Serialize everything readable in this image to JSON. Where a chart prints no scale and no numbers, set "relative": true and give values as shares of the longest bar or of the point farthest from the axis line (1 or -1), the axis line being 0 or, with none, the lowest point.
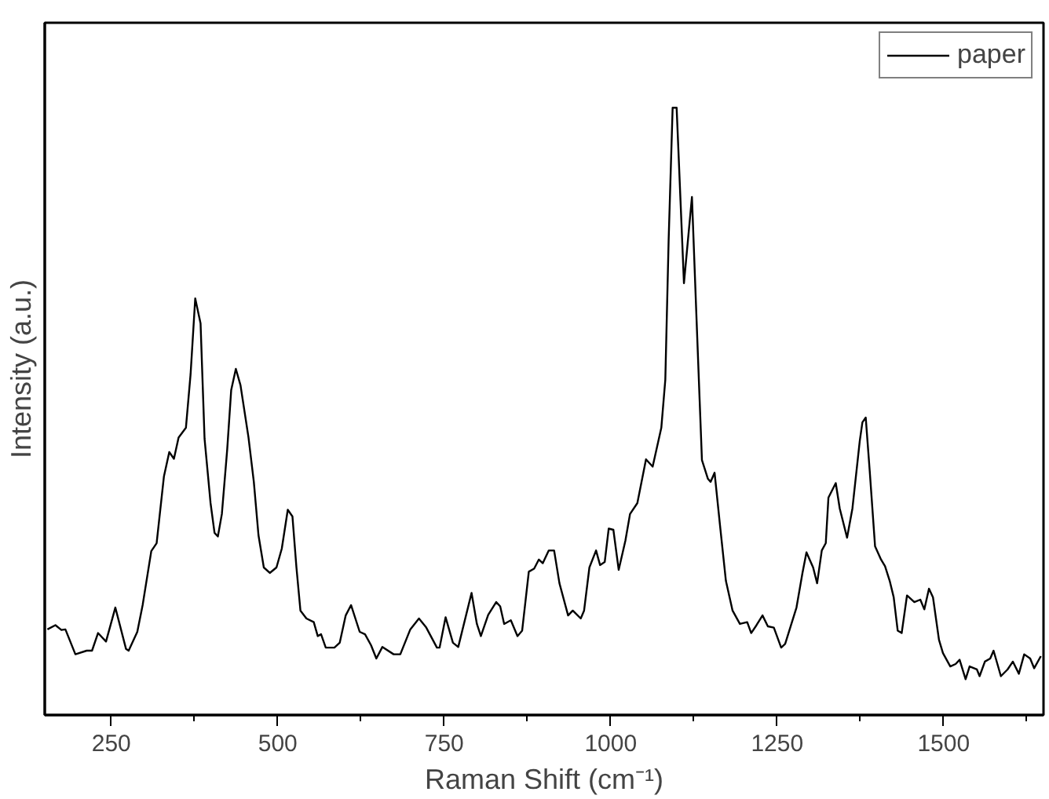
{
  "chart_data": {
    "type": "line",
    "xlabel": "Raman Shift (cm⁻¹)",
    "ylabel": "Intensity (a.u.)",
    "relative": true,
    "xlim": [
      150,
      1650
    ],
    "xticks": [
      250,
      {
        "value": 375,
        "label": null
      },
      500,
      {
        "value": 625,
        "label": null
      },
      750,
      {
        "value": 875,
        "label": null
      },
      1000,
      {
        "value": 1125,
        "label": null
      },
      1250,
      {
        "value": 1375,
        "label": null
      },
      1500,
      {
        "value": 1625,
        "label": null
      }
    ],
    "legend": "top right",
    "grid": false,
    "marker": "none",
    "line_style": "solid",
    "series": [
      {
        "name": "paper",
        "color": "#000000",
        "x": [
          154,
          166,
          175,
          181,
          196,
          213,
          221,
          230,
          242,
          256,
          272,
          276,
          289,
          297,
          310,
          318,
          329,
          337,
          344,
          351,
          362,
          369,
          376,
          384,
          390,
          399,
          405,
          410,
          416,
          424,
          430,
          437,
          444,
          456,
          464,
          471,
          479,
          488,
          498,
          506,
          515,
          522,
          528,
          534,
          543,
          554,
          560,
          565,
          572,
          585,
          593,
          602,
          610,
          623,
          631,
          640,
          648,
          657,
          674,
          684,
          699,
          712,
          723,
          739,
          743,
          752,
          763,
          771,
          791,
          799,
          805,
          816,
          828,
          834,
          840,
          850,
          860,
          867,
          877,
          885,
          892,
          898,
          907,
          915,
          923,
          936,
          943,
          955,
          960,
          968,
          978,
          984,
          991,
          997,
          1004,
          1012,
          1022,
          1029,
          1040,
          1053,
          1063,
          1076,
          1082,
          1087,
          1093,
          1099,
          1110,
          1122,
          1129,
          1137,
          1146,
          1150,
          1156,
          1164,
          1173,
          1183,
          1194,
          1205,
          1211,
          1219,
          1228,
          1236,
          1245,
          1256,
          1262,
          1279,
          1288,
          1294,
          1304,
          1310,
          1317,
          1323,
          1327,
          1338,
          1344,
          1355,
          1363,
          1374,
          1378,
          1383,
          1389,
          1397,
          1406,
          1412,
          1419,
          1425,
          1431,
          1437,
          1445,
          1456,
          1465,
          1471,
          1478,
          1484,
          1493,
          1499,
          1510,
          1518,
          1524,
          1533,
          1539,
          1550,
          1554,
          1562,
          1570,
          1575,
          1586,
          1596,
          1604,
          1613,
          1621,
          1630,
          1636,
          1646
        ],
        "values": [
          0.141,
          0.148,
          0.14,
          0.141,
          0.1,
          0.106,
          0.106,
          0.135,
          0.121,
          0.177,
          0.109,
          0.106,
          0.137,
          0.181,
          0.27,
          0.283,
          0.393,
          0.433,
          0.422,
          0.457,
          0.473,
          0.561,
          0.686,
          0.645,
          0.455,
          0.349,
          0.3,
          0.294,
          0.331,
          0.437,
          0.535,
          0.57,
          0.543,
          0.457,
          0.384,
          0.296,
          0.243,
          0.234,
          0.243,
          0.274,
          0.338,
          0.327,
          0.243,
          0.172,
          0.159,
          0.153,
          0.13,
          0.133,
          0.111,
          0.111,
          0.119,
          0.164,
          0.181,
          0.137,
          0.133,
          0.115,
          0.093,
          0.112,
          0.1,
          0.1,
          0.141,
          0.159,
          0.144,
          0.111,
          0.111,
          0.161,
          0.119,
          0.112,
          0.201,
          0.15,
          0.13,
          0.165,
          0.186,
          0.179,
          0.15,
          0.156,
          0.13,
          0.139,
          0.236,
          0.241,
          0.256,
          0.25,
          0.271,
          0.271,
          0.217,
          0.164,
          0.172,
          0.159,
          0.172,
          0.243,
          0.271,
          0.247,
          0.252,
          0.307,
          0.305,
          0.239,
          0.287,
          0.331,
          0.349,
          0.421,
          0.409,
          0.473,
          0.552,
          0.782,
          1.0,
          1.0,
          0.711,
          0.853,
          0.649,
          0.42,
          0.389,
          0.384,
          0.399,
          0.314,
          0.221,
          0.172,
          0.15,
          0.153,
          0.135,
          0.148,
          0.164,
          0.146,
          0.144,
          0.111,
          0.117,
          0.177,
          0.234,
          0.268,
          0.243,
          0.217,
          0.271,
          0.283,
          0.358,
          0.382,
          0.34,
          0.292,
          0.34,
          0.451,
          0.482,
          0.49,
          0.402,
          0.278,
          0.256,
          0.245,
          0.221,
          0.194,
          0.139,
          0.135,
          0.197,
          0.186,
          0.19,
          0.174,
          0.208,
          0.194,
          0.124,
          0.102,
          0.08,
          0.084,
          0.091,
          0.059,
          0.08,
          0.075,
          0.064,
          0.088,
          0.093,
          0.106,
          0.064,
          0.075,
          0.088,
          0.068,
          0.1,
          0.093,
          0.077,
          0.097
        ]
      }
    ]
  }
}
